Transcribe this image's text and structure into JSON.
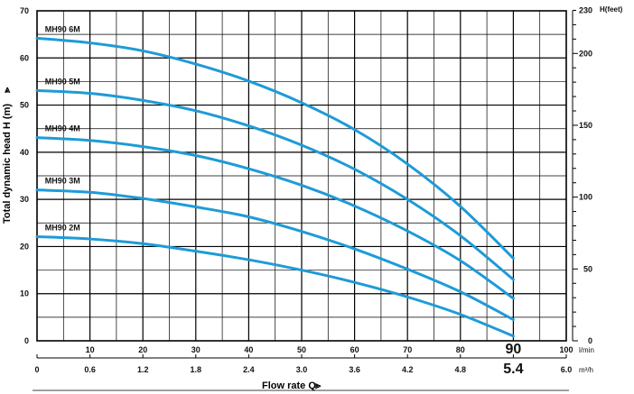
{
  "chart_data": {
    "type": "line",
    "xlabel": "Flow rate Q",
    "ylabel": "Total dynamic head H (m)",
    "right_unit_label": "H(feet)",
    "x_unit_lmin": "l/min",
    "x_unit_m3h": "m³/h",
    "xlim": [
      0,
      100
    ],
    "ylim": [
      0,
      70
    ],
    "grid": true,
    "x_ticks_lmin": [
      "10",
      "20",
      "30",
      "40",
      "50",
      "60",
      "70",
      "80",
      "90",
      "100"
    ],
    "x_ticks_m3h": [
      "0",
      "0.6",
      "1.2",
      "1.8",
      "2.4",
      "3.0",
      "3.6",
      "4.2",
      "4.8",
      "5.4",
      "6.0"
    ],
    "y_ticks": [
      "0",
      "10",
      "20",
      "30",
      "40",
      "50",
      "60",
      "70"
    ],
    "y2_ticks": [
      "0",
      "50",
      "100",
      "150",
      "200",
      "230"
    ],
    "highlight_ticks": {
      "lmin": "90",
      "m3h": "5.4"
    },
    "line_color": "#1e9bd7",
    "series": [
      {
        "name": "MH90 6M",
        "x": [
          0,
          10,
          20,
          30,
          40,
          50,
          60,
          70,
          80,
          90
        ],
        "values": [
          64.2,
          63.2,
          61.5,
          58.7,
          55.1,
          50.5,
          44.8,
          37.5,
          28.5,
          17.5
        ]
      },
      {
        "name": "MH90 5M",
        "x": [
          0,
          10,
          20,
          30,
          40,
          50,
          60,
          70,
          80,
          90
        ],
        "values": [
          53.1,
          52.5,
          51.0,
          48.8,
          45.6,
          41.5,
          36.4,
          30.0,
          22.3,
          13.0
        ]
      },
      {
        "name": "MH90 4M",
        "x": [
          0,
          10,
          20,
          30,
          40,
          50,
          60,
          70,
          80,
          90
        ],
        "values": [
          43.1,
          42.5,
          41.2,
          39.3,
          36.5,
          33.0,
          28.6,
          23.3,
          17.0,
          9.0
        ]
      },
      {
        "name": "MH90 3M",
        "x": [
          0,
          10,
          20,
          30,
          40,
          50,
          60,
          70,
          80,
          90
        ],
        "values": [
          32.0,
          31.5,
          30.2,
          28.4,
          26.3,
          23.2,
          19.5,
          15.2,
          10.4,
          4.5
        ]
      },
      {
        "name": "MH90 2M",
        "x": [
          0,
          10,
          20,
          30,
          40,
          50,
          60,
          70,
          80,
          90
        ],
        "values": [
          22.1,
          21.6,
          20.6,
          19.0,
          17.2,
          15.0,
          12.4,
          9.3,
          5.6,
          1.0
        ]
      }
    ]
  }
}
